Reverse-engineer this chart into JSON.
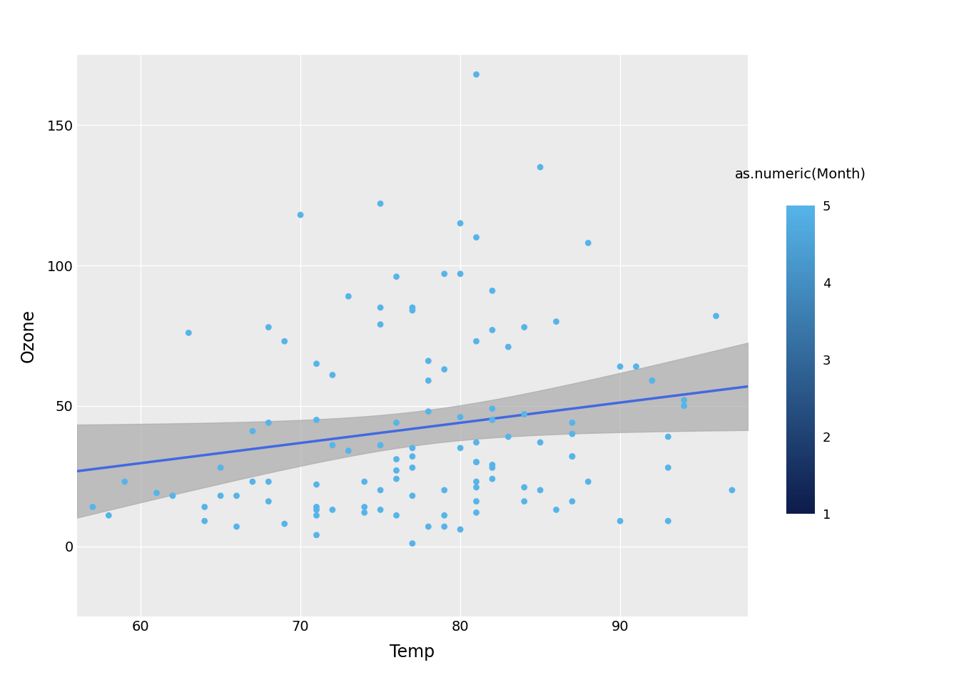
{
  "title": "",
  "xlabel": "Temp",
  "ylabel": "Ozone",
  "colorbar_label": "as.numeric(Month)",
  "bg_color": "#EBEBEB",
  "grid_color": "#FFFFFF",
  "line_color": "#4169E1",
  "ci_color": "#AAAAAA",
  "point_size": 40,
  "line_width": 2.0,
  "cmap_low": "#0D1B4A",
  "cmap_high": "#56B4E9",
  "xlim": [
    56,
    98
  ],
  "ylim": [
    -25,
    175
  ],
  "xticks": [
    60,
    70,
    80,
    90
  ],
  "yticks": [
    0,
    50,
    100,
    150
  ],
  "colorbar_ticks": [
    1,
    2,
    3,
    4,
    5
  ],
  "data": {
    "Ozone": [
      41,
      36,
      12,
      18,
      28,
      23,
      19,
      8,
      7,
      16,
      11,
      14,
      18,
      14,
      34,
      6,
      30,
      11,
      1,
      11,
      4,
      32,
      23,
      45,
      115,
      37,
      29,
      71,
      39,
      23,
      21,
      37,
      20,
      12,
      13,
      135,
      49,
      32,
      64,
      40,
      77,
      97,
      97,
      85,
      11,
      27,
      7,
      48,
      35,
      61,
      79,
      63,
      16,
      80,
      108,
      20,
      52,
      82,
      50,
      64,
      59,
      39,
      9,
      16,
      78,
      35,
      66,
      122,
      89,
      110,
      44,
      28,
      65,
      22,
      59,
      23,
      31,
      44,
      28,
      9,
      45,
      168,
      73,
      76,
      118,
      84,
      85,
      96,
      78,
      73,
      91,
      47,
      32,
      20,
      23,
      21,
      24,
      44,
      28,
      9,
      13,
      46,
      18,
      13,
      24,
      16,
      13,
      23,
      36,
      7,
      14,
      30,
      14,
      18,
      20
    ],
    "Temp": [
      67,
      72,
      74,
      62,
      65,
      59,
      61,
      69,
      66,
      68,
      58,
      64,
      66,
      57,
      73,
      80,
      81,
      76,
      77,
      71,
      71,
      77,
      81,
      82,
      80,
      81,
      82,
      83,
      83,
      88,
      84,
      85,
      79,
      81,
      86,
      85,
      82,
      87,
      90,
      87,
      82,
      80,
      79,
      77,
      79,
      76,
      78,
      78,
      77,
      72,
      75,
      79,
      81,
      86,
      88,
      97,
      94,
      96,
      94,
      91,
      92,
      93,
      93,
      87,
      84,
      80,
      78,
      75,
      73,
      81,
      76,
      77,
      71,
      71,
      78,
      67,
      76,
      68,
      82,
      64,
      71,
      81,
      69,
      63,
      70,
      77,
      75,
      76,
      68,
      81,
      82,
      84,
      87,
      85,
      74,
      81,
      82,
      87,
      93,
      90,
      71,
      80,
      65,
      75,
      76,
      84,
      72,
      68,
      75,
      79,
      71,
      81,
      74,
      77,
      75
    ]
  },
  "months": [
    5,
    5,
    5,
    5,
    5,
    5,
    5,
    5,
    5,
    5,
    5,
    5,
    5,
    5,
    5,
    5,
    5,
    5,
    5,
    5,
    5,
    5,
    5,
    5,
    5,
    5,
    5,
    5,
    5,
    5,
    5,
    6,
    6,
    6,
    6,
    6,
    6,
    6,
    6,
    6,
    6,
    6,
    6,
    6,
    6,
    6,
    6,
    6,
    6,
    6,
    6,
    6,
    6,
    6,
    6,
    6,
    6,
    6,
    6,
    6,
    6,
    7,
    7,
    7,
    7,
    7,
    7,
    7,
    7,
    7,
    7,
    7,
    7,
    7,
    7,
    7,
    7,
    7,
    7,
    7,
    7,
    7,
    7,
    7,
    7,
    7,
    7,
    7,
    7,
    7,
    7,
    8,
    8,
    8,
    8,
    8,
    8,
    8,
    8,
    8,
    8,
    8,
    8,
    8,
    8,
    8,
    8,
    8,
    8,
    8,
    8,
    8,
    8,
    8,
    8
  ]
}
